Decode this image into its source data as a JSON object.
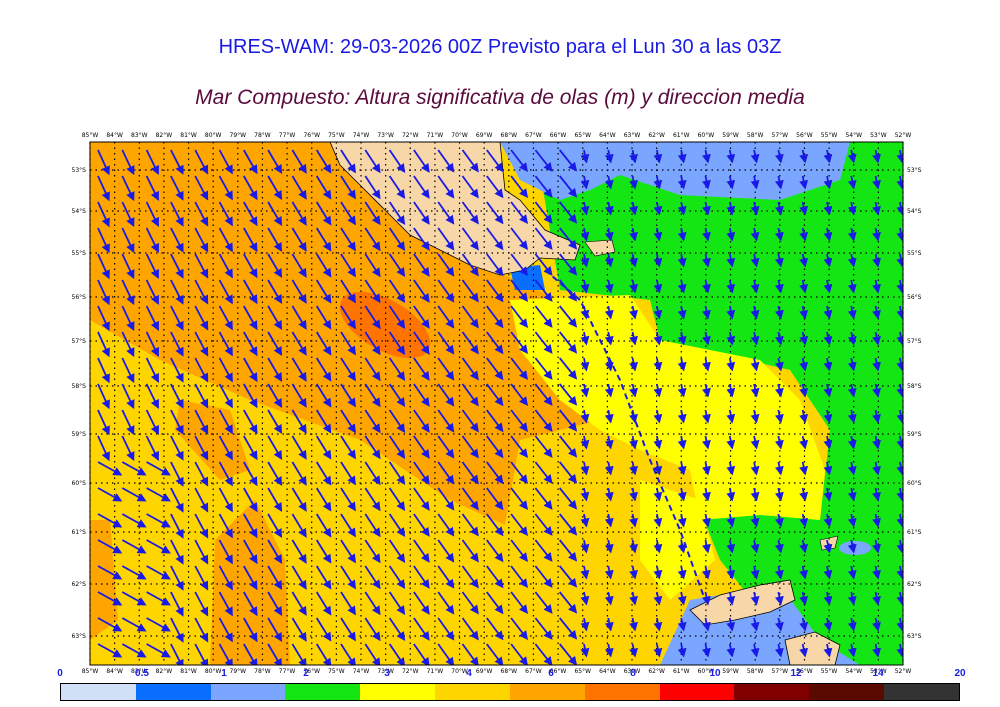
{
  "header": {
    "title": "HRES-WAM: 29-03-2026 00Z Previsto para el Lun 30 a las 03Z",
    "subtitle": "Mar Compuesto: Altura significativa de olas (m) y direccion media"
  },
  "map": {
    "lon_labels": [
      "85°W",
      "84°W",
      "83°W",
      "82°W",
      "81°W",
      "80°W",
      "79°W",
      "78°W",
      "77°W",
      "76°W",
      "75°W",
      "74°W",
      "73°W",
      "72°W",
      "71°W",
      "70°W",
      "69°W",
      "68°W",
      "67°W",
      "66°W",
      "65°W",
      "64°W",
      "63°W",
      "62°W",
      "61°W",
      "60°W",
      "59°W",
      "58°W",
      "57°W",
      "56°W",
      "55°W",
      "54°W",
      "53°W",
      "52°W"
    ],
    "lat_labels": [
      "53°S",
      "54°S",
      "55°S",
      "56°S",
      "57°S",
      "58°S",
      "59°S",
      "60°S",
      "61°S",
      "62°S",
      "63°S"
    ],
    "land_color": "#f7d7a8",
    "arrow_color": "#1a1ae6"
  },
  "legend": {
    "ticks": [
      "0",
      "0.5",
      "1",
      "2",
      "3",
      "4",
      "6",
      "8",
      "10",
      "12",
      "14",
      "20"
    ],
    "colors": [
      "#cfe0f7",
      "#0a6eff",
      "#7aa6ff",
      "#14e614",
      "#ffff00",
      "#ffd500",
      "#ffa500",
      "#ff7300",
      "#ff0000",
      "#800000",
      "#5a0a00",
      "#333333"
    ]
  }
}
